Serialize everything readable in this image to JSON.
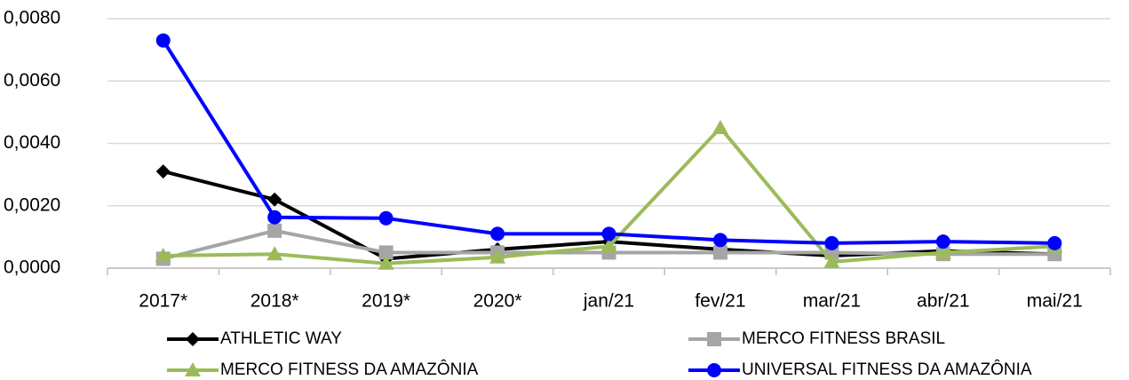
{
  "chart_data": {
    "type": "line",
    "categories": [
      "2017*",
      "2018*",
      "2019*",
      "2020*",
      "jan/21",
      "fev/21",
      "mar/21",
      "abr/21",
      "mai/21"
    ],
    "series": [
      {
        "name": "ATHLETIC WAY",
        "color": "#000000",
        "marker": "diamond",
        "values": [
          0.0031,
          0.0022,
          0.0003,
          0.0006,
          0.00085,
          0.0006,
          0.0004,
          0.00055,
          0.00045
        ]
      },
      {
        "name": "MERCO FITNESS BRASIL",
        "color": "#a5a5a5",
        "marker": "square",
        "values": [
          0.0003,
          0.0012,
          0.0005,
          0.0005,
          0.0005,
          0.0005,
          0.0005,
          0.00045,
          0.00045
        ]
      },
      {
        "name": "MERCO FITNESS DA AMAZÔNIA",
        "color": "#9bbb59",
        "marker": "triangle",
        "values": [
          0.0004,
          0.00045,
          0.00015,
          0.00035,
          0.0007,
          0.0045,
          0.0002,
          0.0005,
          0.0007
        ]
      },
      {
        "name": "UNIVERSAL FITNESS DA AMAZÔNIA",
        "color": "#0000ff",
        "marker": "circle",
        "values": [
          0.0073,
          0.00163,
          0.0016,
          0.0011,
          0.0011,
          0.0009,
          0.0008,
          0.00085,
          0.0008
        ]
      }
    ],
    "ylim": [
      0,
      0.008
    ],
    "yticks": [
      {
        "value": 0,
        "label": "0,0000"
      },
      {
        "value": 0.002,
        "label": "0,0020"
      },
      {
        "value": 0.004,
        "label": "0,0040"
      },
      {
        "value": 0.006,
        "label": "0,0060"
      },
      {
        "value": 0.008,
        "label": "0,0080"
      }
    ],
    "grid": true,
    "legend": "bottom"
  }
}
